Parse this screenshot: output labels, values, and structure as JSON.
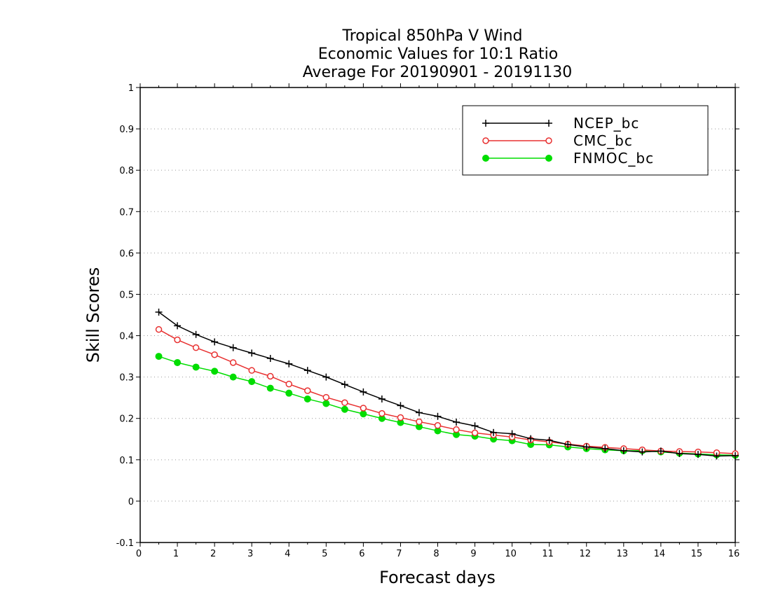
{
  "chart_data": {
    "type": "line",
    "title_lines": [
      "Tropical 850hPa V Wind",
      "Economic Values for 10:1 Ratio",
      "Average For 20190901 - 20191130"
    ],
    "xlabel": "Forecast days",
    "ylabel": "Skill Scores",
    "xlim": [
      0,
      16
    ],
    "ylim": [
      -0.1,
      1
    ],
    "xticks": [
      0,
      1,
      2,
      3,
      4,
      5,
      6,
      7,
      8,
      9,
      10,
      11,
      12,
      13,
      14,
      15,
      16
    ],
    "xtick_labels": [
      "0",
      "1",
      "2",
      "3",
      "4",
      "5",
      "6",
      "7",
      "8",
      "9",
      "10",
      "11",
      "12",
      "13",
      "14",
      "15",
      "16"
    ],
    "yticks": [
      -0.1,
      0,
      0.1,
      0.2,
      0.3,
      0.4,
      0.5,
      0.6,
      0.7,
      0.8,
      0.9,
      1
    ],
    "ytick_labels": [
      "-0.1",
      "0",
      "0.1",
      "0.2",
      "0.3",
      "0.4",
      "0.5",
      "0.6",
      "0.7",
      "0.8",
      "0.9",
      "1"
    ],
    "grid": "horizontal dotted",
    "legend_position": "top-right",
    "x": [
      0.5,
      1.0,
      1.5,
      2.0,
      2.5,
      3.0,
      3.5,
      4.0,
      4.5,
      5.0,
      5.5,
      6.0,
      6.5,
      7.0,
      7.5,
      8.0,
      8.5,
      9.0,
      9.5,
      10.0,
      10.5,
      11.0,
      11.5,
      12.0,
      12.5,
      13.0,
      13.5,
      14.0,
      14.5,
      15.0,
      15.5,
      16.0
    ],
    "series": [
      {
        "name": "NCEP_bc",
        "color": "#000000",
        "marker": "plus",
        "values": [
          0.457,
          0.424,
          0.403,
          0.385,
          0.371,
          0.358,
          0.345,
          0.332,
          0.316,
          0.3,
          0.282,
          0.264,
          0.247,
          0.231,
          0.214,
          0.205,
          0.191,
          0.182,
          0.166,
          0.163,
          0.151,
          0.147,
          0.137,
          0.131,
          0.127,
          0.122,
          0.119,
          0.121,
          0.115,
          0.113,
          0.109,
          0.11
        ]
      },
      {
        "name": "CMC_bc",
        "color": "#e83030",
        "marker": "open-circle",
        "values": [
          0.415,
          0.39,
          0.371,
          0.354,
          0.335,
          0.316,
          0.302,
          0.283,
          0.267,
          0.251,
          0.238,
          0.225,
          0.212,
          0.202,
          0.192,
          0.183,
          0.173,
          0.165,
          0.16,
          0.155,
          0.148,
          0.143,
          0.138,
          0.133,
          0.13,
          0.127,
          0.124,
          0.121,
          0.12,
          0.119,
          0.117,
          0.115
        ]
      },
      {
        "name": "FNMOC_bc",
        "color": "#00dd00",
        "marker": "filled-circle",
        "values": [
          0.35,
          0.335,
          0.324,
          0.314,
          0.3,
          0.289,
          0.273,
          0.261,
          0.247,
          0.236,
          0.222,
          0.211,
          0.2,
          0.19,
          0.18,
          0.17,
          0.161,
          0.157,
          0.15,
          0.146,
          0.137,
          0.136,
          0.131,
          0.127,
          0.124,
          0.122,
          0.122,
          0.119,
          0.116,
          0.114,
          0.112,
          0.111
        ]
      }
    ]
  }
}
